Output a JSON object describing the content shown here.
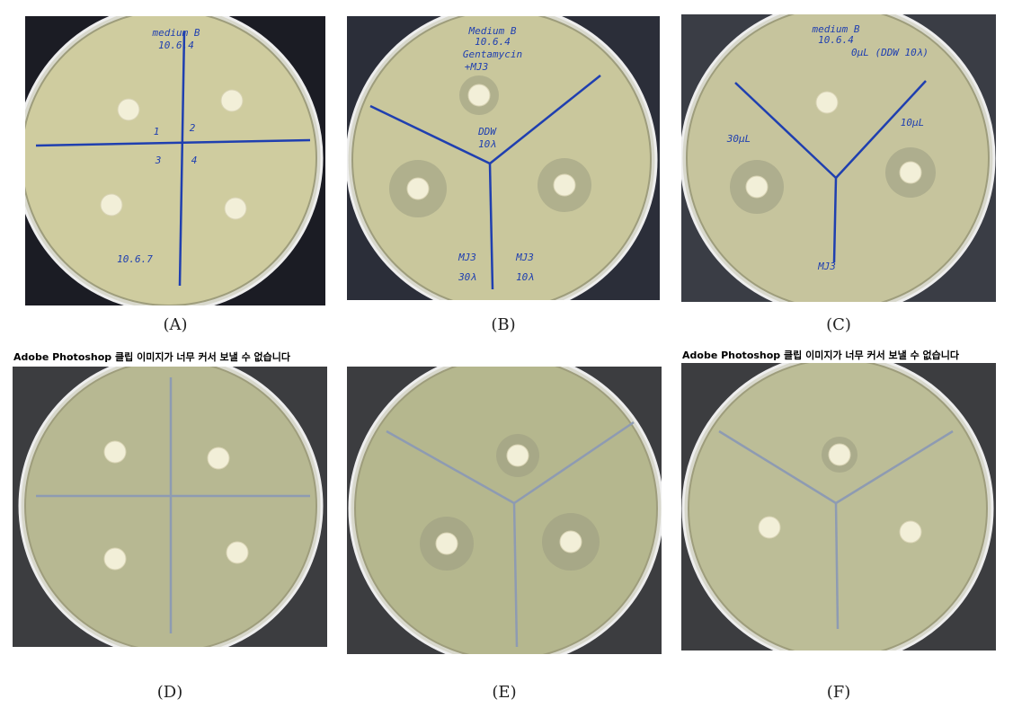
{
  "panels": [
    {
      "label": "(A)",
      "notes": [
        "medium B",
        "10.6.4",
        "1",
        "2",
        "3",
        "4",
        "10.6.7"
      ]
    },
    {
      "label": "(B)",
      "notes": [
        "Medium B",
        "10.6.4",
        "Gentamycin",
        "+MJ3",
        "DDW",
        "10λ",
        "MJ3",
        "MJ3",
        "30λ",
        "10λ"
      ]
    },
    {
      "label": "(C)",
      "notes": [
        "medium B",
        "10.6.4",
        "0μL (DDW 10λ)",
        "30μL",
        "10μL",
        "MJ3"
      ]
    },
    {
      "label": "(D)",
      "banner": "Adobe Photoshop 클립 이미지가 너무 커서 보낼 수 없습니다"
    },
    {
      "label": "(E)"
    },
    {
      "label": "(F)",
      "banner": "Adobe Photoshop 클립 이미지가 너무 커서 보낼 수 없습니다"
    }
  ]
}
